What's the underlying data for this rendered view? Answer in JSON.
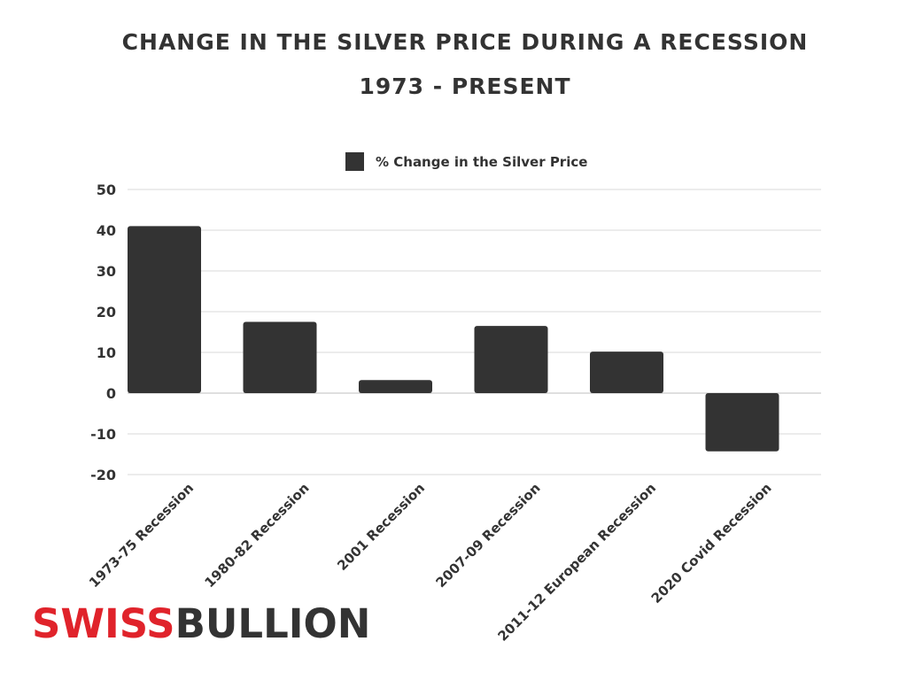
{
  "title_line1": "CHANGE IN THE SILVER PRICE DURING A RECESSION",
  "title_line2": "1973 - PRESENT",
  "logo": {
    "part1": "SWISS",
    "part2": "BULLION",
    "color1": "#e0232b",
    "color2": "#333333"
  },
  "colors": {
    "bar": "#333333",
    "grid": "#d9d9d9",
    "text": "#333333"
  },
  "chart_data": {
    "type": "bar",
    "categories": [
      "1973-75 Recession",
      "1980-82 Recession",
      "2001 Recession",
      "2007-09 Recession",
      "2011-12 European Recession",
      "2020 Covid Recession"
    ],
    "series": [
      {
        "name": "% Change in the Silver Price",
        "values": [
          41,
          17.5,
          3.2,
          16.5,
          10.2,
          -14.3
        ]
      }
    ],
    "yticks": [
      50,
      40,
      30,
      20,
      10,
      0,
      -10,
      -20
    ],
    "ylim": [
      -20,
      50
    ],
    "grid": true,
    "legend_position": "top-center"
  }
}
